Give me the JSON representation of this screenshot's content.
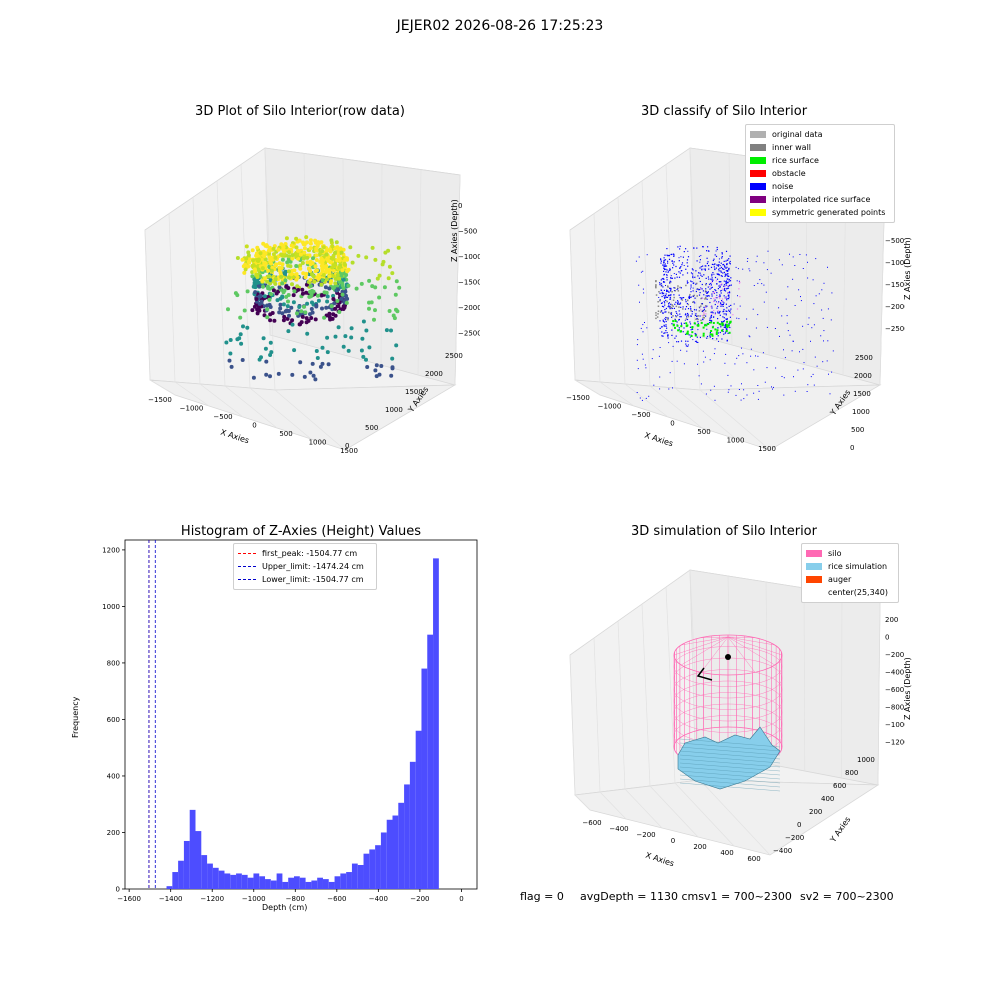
{
  "suptitle": "JEJER02 2026-08-26 17:25:23",
  "footer": {
    "flag": "flag = 0",
    "avg": "avgDepth = 1130 cmsv1 = 700~2300",
    "sv2": "sv2 = 700~2300"
  },
  "colors": {
    "hist_bar": "#4d4dff",
    "peak_line": "#ff0000",
    "limit_line": "#0000cc",
    "silo": "#ff69b4",
    "rice": "#87ceeb",
    "auger": "#ff4500"
  },
  "chart_data": [
    {
      "type": "scatter",
      "dims": 3,
      "title": "3D Plot of Silo Interior(row data)",
      "xlabel": "X Axies",
      "ylabel": "Y Axies",
      "zlabel": "Z Axies (Depth)",
      "xticks": [
        "−1500",
        "−1000",
        "−500",
        "0",
        "500",
        "1000",
        "1500"
      ],
      "yticks": [
        "0",
        "500",
        "1000",
        "1500",
        "2000",
        "2500"
      ],
      "zticks": [
        "0",
        "−500",
        "−1000",
        "−1500",
        "−2000",
        "−2500"
      ],
      "xlim": [
        -1600,
        1600
      ],
      "ylim": [
        0,
        2700
      ],
      "zlim": [
        -2700,
        0
      ],
      "colormap": "viridis (by depth)"
    },
    {
      "type": "scatter",
      "dims": 3,
      "title": "3D classify of Silo Interior",
      "xlabel": "X Axies",
      "ylabel": "Y Axies",
      "zlabel": "Z Axies (Depth)",
      "xticks": [
        "−1500",
        "−1000",
        "−500",
        "0",
        "500",
        "1000",
        "1500"
      ],
      "yticks": [
        "0",
        "500",
        "1000",
        "1500",
        "2000",
        "2500"
      ],
      "zticks": [
        "−500",
        "−1000",
        "−1500",
        "−2000",
        "−2500"
      ],
      "legend": [
        {
          "label": "original data",
          "color": "#b0b0b0"
        },
        {
          "label": "inner wall",
          "color": "#808080"
        },
        {
          "label": "rice surface",
          "color": "#00ee00"
        },
        {
          "label": "obstacle",
          "color": "#ff0000"
        },
        {
          "label": "noise",
          "color": "#0000ff"
        },
        {
          "label": "interpolated rice surface",
          "color": "#800080"
        },
        {
          "label": "symmetric generated points",
          "color": "#ffff00"
        }
      ],
      "legend_position": "upper right"
    },
    {
      "type": "bar",
      "title": "Histogram of Z-Axies (Height) Values",
      "xlabel": "Depth (cm)",
      "ylabel": "Frequency",
      "xlim": [
        -1620,
        75
      ],
      "ylim": [
        0,
        1235
      ],
      "xticks": [
        -1600,
        -1400,
        -1200,
        -1000,
        -800,
        -600,
        -400,
        -200,
        0
      ],
      "xtick_labels": [
        "−1600",
        "−1400",
        "−1200",
        "−1000",
        "−800",
        "−600",
        "−400",
        "−200",
        "0"
      ],
      "yticks": [
        0,
        200,
        400,
        600,
        800,
        1000,
        1200
      ],
      "bin_edges": [
        -1420,
        -1392.1,
        -1364.2,
        -1336.3,
        -1308.4,
        -1280.5,
        -1252.6,
        -1224.7,
        -1196.8,
        -1168.9,
        -1141,
        -1113.1,
        -1085.2,
        -1057.3,
        -1029.4,
        -1001.5,
        -973.6,
        -945.7,
        -917.8,
        -889.9,
        -862,
        -834.1,
        -806.2,
        -778.3,
        -750.4,
        -722.5,
        -694.6,
        -666.7,
        -638.8,
        -610.9,
        -583,
        -555.1,
        -527.2,
        -499.3,
        -471.4,
        -443.5,
        -415.6,
        -387.7,
        -359.8,
        -331.9,
        -304,
        -276.1,
        -248.2,
        -220.3,
        -192.4,
        -164.5,
        -136.6,
        -108.7,
        -80.8,
        -52.9,
        -25,
        0
      ],
      "values": [
        10,
        60,
        100,
        170,
        280,
        205,
        120,
        90,
        75,
        65,
        55,
        50,
        55,
        50,
        40,
        55,
        45,
        35,
        30,
        55,
        25,
        40,
        45,
        40,
        25,
        30,
        40,
        35,
        25,
        45,
        55,
        60,
        90,
        85,
        125,
        140,
        155,
        200,
        245,
        260,
        305,
        370,
        450,
        560,
        780,
        900,
        1170,
        0,
        0,
        0,
        0
      ],
      "vlines": [
        {
          "label": "first_peak: -1504.77 cm",
          "x": -1504.77,
          "color": "#ff0000"
        },
        {
          "label": "Upper_limit: -1474.24 cm",
          "x": -1474.24,
          "color": "#0000cc"
        },
        {
          "label": "Lower_limit: -1504.77 cm",
          "x": -1504.77,
          "color": "#0000cc"
        }
      ],
      "legend_position": "upper center"
    },
    {
      "type": "surface",
      "dims": 3,
      "title": "3D simulation of Silo Interior",
      "xlabel": "X Axies",
      "ylabel": "Y Axies",
      "zlabel": "Z Axies (Depth)",
      "xticks": [
        "−600",
        "−400",
        "−200",
        "0",
        "200",
        "400",
        "600"
      ],
      "yticks": [
        "−400",
        "−200",
        "0",
        "200",
        "400",
        "600",
        "800",
        "1000"
      ],
      "zticks": [
        "200",
        "0",
        "−200",
        "−400",
        "−600",
        "−800",
        "−1000",
        "−1200"
      ],
      "legend": [
        {
          "label": "silo",
          "color": "#ff69b4"
        },
        {
          "label": "rice simulation",
          "color": "#87ceeb"
        },
        {
          "label": "auger",
          "color": "#ff4500"
        },
        {
          "label": "center(25,340)",
          "color": ""
        }
      ],
      "legend_position": "upper right"
    }
  ]
}
